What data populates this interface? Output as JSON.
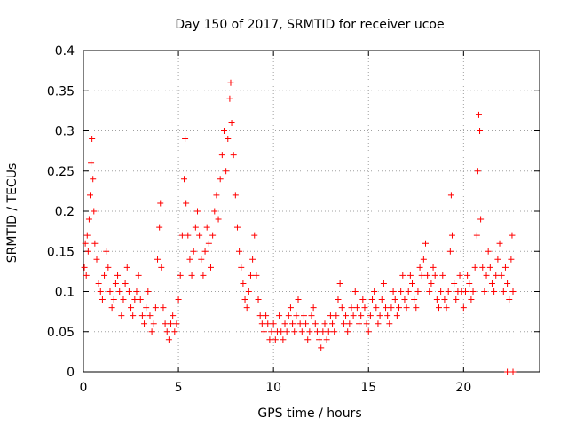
{
  "chart_data": {
    "type": "scatter",
    "title": "Day 150 of 2017, SRMTID for receiver ucoe",
    "xlabel": "GPS time / hours",
    "ylabel": "SRMTID / TECUs",
    "xlim": [
      0,
      24
    ],
    "ylim": [
      0,
      0.4
    ],
    "xticks": [
      0,
      5,
      10,
      15,
      20
    ],
    "xtick_labels": [
      "0",
      "5",
      "10",
      "15",
      "20"
    ],
    "yticks": [
      0,
      0.05,
      0.1,
      0.15,
      0.2,
      0.25,
      0.3,
      0.35,
      0.4
    ],
    "ytick_labels": [
      "0",
      "0.05",
      "0.1",
      "0.15",
      "0.2",
      "0.25",
      "0.3",
      "0.35",
      "0.4"
    ],
    "grid": true,
    "marker": "+",
    "color": "#ff0000",
    "series": [
      {
        "name": "SRMTID",
        "points": [
          [
            0.05,
            0.13
          ],
          [
            0.1,
            0.16
          ],
          [
            0.15,
            0.12
          ],
          [
            0.2,
            0.17
          ],
          [
            0.25,
            0.15
          ],
          [
            0.3,
            0.19
          ],
          [
            0.35,
            0.22
          ],
          [
            0.4,
            0.26
          ],
          [
            0.45,
            0.29
          ],
          [
            0.5,
            0.24
          ],
          [
            0.55,
            0.2
          ],
          [
            0.6,
            0.16
          ],
          [
            0.7,
            0.14
          ],
          [
            0.8,
            0.11
          ],
          [
            0.9,
            0.1
          ],
          [
            1.0,
            0.09
          ],
          [
            1.1,
            0.12
          ],
          [
            1.2,
            0.15
          ],
          [
            1.3,
            0.13
          ],
          [
            1.4,
            0.1
          ],
          [
            1.5,
            0.08
          ],
          [
            1.6,
            0.09
          ],
          [
            1.7,
            0.11
          ],
          [
            1.8,
            0.12
          ],
          [
            1.9,
            0.1
          ],
          [
            2.0,
            0.07
          ],
          [
            2.1,
            0.09
          ],
          [
            2.2,
            0.11
          ],
          [
            2.3,
            0.13
          ],
          [
            2.4,
            0.1
          ],
          [
            2.5,
            0.08
          ],
          [
            2.6,
            0.07
          ],
          [
            2.7,
            0.09
          ],
          [
            2.8,
            0.1
          ],
          [
            2.9,
            0.12
          ],
          [
            3.0,
            0.09
          ],
          [
            3.1,
            0.07
          ],
          [
            3.2,
            0.06
          ],
          [
            3.3,
            0.08
          ],
          [
            3.4,
            0.1
          ],
          [
            3.5,
            0.07
          ],
          [
            3.6,
            0.05
          ],
          [
            3.7,
            0.06
          ],
          [
            3.8,
            0.08
          ],
          [
            3.9,
            0.14
          ],
          [
            4.0,
            0.18
          ],
          [
            4.05,
            0.21
          ],
          [
            4.1,
            0.13
          ],
          [
            4.2,
            0.08
          ],
          [
            4.3,
            0.06
          ],
          [
            4.4,
            0.05
          ],
          [
            4.5,
            0.04
          ],
          [
            4.6,
            0.06
          ],
          [
            4.7,
            0.07
          ],
          [
            4.8,
            0.05
          ],
          [
            4.9,
            0.06
          ],
          [
            5.0,
            0.09
          ],
          [
            5.1,
            0.12
          ],
          [
            5.2,
            0.17
          ],
          [
            5.3,
            0.24
          ],
          [
            5.35,
            0.29
          ],
          [
            5.4,
            0.21
          ],
          [
            5.5,
            0.17
          ],
          [
            5.6,
            0.14
          ],
          [
            5.7,
            0.12
          ],
          [
            5.8,
            0.15
          ],
          [
            5.9,
            0.18
          ],
          [
            6.0,
            0.2
          ],
          [
            6.1,
            0.17
          ],
          [
            6.2,
            0.14
          ],
          [
            6.3,
            0.12
          ],
          [
            6.4,
            0.15
          ],
          [
            6.5,
            0.18
          ],
          [
            6.6,
            0.16
          ],
          [
            6.7,
            0.13
          ],
          [
            6.8,
            0.17
          ],
          [
            6.9,
            0.2
          ],
          [
            7.0,
            0.22
          ],
          [
            7.1,
            0.19
          ],
          [
            7.2,
            0.24
          ],
          [
            7.3,
            0.27
          ],
          [
            7.4,
            0.3
          ],
          [
            7.5,
            0.25
          ],
          [
            7.6,
            0.29
          ],
          [
            7.7,
            0.34
          ],
          [
            7.75,
            0.36
          ],
          [
            7.8,
            0.31
          ],
          [
            7.9,
            0.27
          ],
          [
            8.0,
            0.22
          ],
          [
            8.1,
            0.18
          ],
          [
            8.2,
            0.15
          ],
          [
            8.3,
            0.13
          ],
          [
            8.4,
            0.11
          ],
          [
            8.5,
            0.09
          ],
          [
            8.6,
            0.08
          ],
          [
            8.7,
            0.1
          ],
          [
            8.8,
            0.12
          ],
          [
            8.9,
            0.14
          ],
          [
            9.0,
            0.17
          ],
          [
            9.1,
            0.12
          ],
          [
            9.2,
            0.09
          ],
          [
            9.3,
            0.07
          ],
          [
            9.4,
            0.06
          ],
          [
            9.5,
            0.05
          ],
          [
            9.6,
            0.07
          ],
          [
            9.7,
            0.06
          ],
          [
            9.8,
            0.04
          ],
          [
            9.9,
            0.05
          ],
          [
            10.0,
            0.06
          ],
          [
            10.1,
            0.04
          ],
          [
            10.2,
            0.05
          ],
          [
            10.3,
            0.07
          ],
          [
            10.4,
            0.05
          ],
          [
            10.5,
            0.04
          ],
          [
            10.6,
            0.06
          ],
          [
            10.7,
            0.05
          ],
          [
            10.8,
            0.07
          ],
          [
            10.9,
            0.08
          ],
          [
            11.0,
            0.06
          ],
          [
            11.1,
            0.05
          ],
          [
            11.2,
            0.07
          ],
          [
            11.3,
            0.09
          ],
          [
            11.4,
            0.06
          ],
          [
            11.5,
            0.05
          ],
          [
            11.6,
            0.07
          ],
          [
            11.7,
            0.06
          ],
          [
            11.8,
            0.04
          ],
          [
            11.9,
            0.05
          ],
          [
            12.0,
            0.07
          ],
          [
            12.1,
            0.08
          ],
          [
            12.2,
            0.06
          ],
          [
            12.3,
            0.05
          ],
          [
            12.4,
            0.04
          ],
          [
            12.5,
            0.03
          ],
          [
            12.6,
            0.05
          ],
          [
            12.7,
            0.06
          ],
          [
            12.8,
            0.04
          ],
          [
            12.9,
            0.05
          ],
          [
            13.0,
            0.07
          ],
          [
            13.1,
            0.06
          ],
          [
            13.2,
            0.05
          ],
          [
            13.3,
            0.07
          ],
          [
            13.4,
            0.09
          ],
          [
            13.5,
            0.11
          ],
          [
            13.6,
            0.08
          ],
          [
            13.7,
            0.06
          ],
          [
            13.8,
            0.07
          ],
          [
            13.9,
            0.05
          ],
          [
            14.0,
            0.06
          ],
          [
            14.1,
            0.08
          ],
          [
            14.2,
            0.07
          ],
          [
            14.3,
            0.1
          ],
          [
            14.4,
            0.08
          ],
          [
            14.5,
            0.06
          ],
          [
            14.6,
            0.07
          ],
          [
            14.7,
            0.09
          ],
          [
            14.8,
            0.08
          ],
          [
            14.9,
            0.06
          ],
          [
            15.0,
            0.05
          ],
          [
            15.1,
            0.07
          ],
          [
            15.2,
            0.09
          ],
          [
            15.3,
            0.1
          ],
          [
            15.4,
            0.08
          ],
          [
            15.5,
            0.06
          ],
          [
            15.6,
            0.07
          ],
          [
            15.7,
            0.09
          ],
          [
            15.8,
            0.11
          ],
          [
            15.9,
            0.08
          ],
          [
            16.0,
            0.07
          ],
          [
            16.1,
            0.06
          ],
          [
            16.2,
            0.08
          ],
          [
            16.3,
            0.1
          ],
          [
            16.4,
            0.09
          ],
          [
            16.5,
            0.07
          ],
          [
            16.6,
            0.08
          ],
          [
            16.7,
            0.1
          ],
          [
            16.8,
            0.12
          ],
          [
            16.9,
            0.09
          ],
          [
            17.0,
            0.08
          ],
          [
            17.1,
            0.1
          ],
          [
            17.2,
            0.12
          ],
          [
            17.3,
            0.11
          ],
          [
            17.4,
            0.09
          ],
          [
            17.5,
            0.08
          ],
          [
            17.6,
            0.1
          ],
          [
            17.7,
            0.13
          ],
          [
            17.8,
            0.12
          ],
          [
            17.9,
            0.14
          ],
          [
            18.0,
            0.16
          ],
          [
            18.1,
            0.12
          ],
          [
            18.2,
            0.1
          ],
          [
            18.3,
            0.11
          ],
          [
            18.4,
            0.13
          ],
          [
            18.5,
            0.12
          ],
          [
            18.6,
            0.09
          ],
          [
            18.7,
            0.08
          ],
          [
            18.8,
            0.1
          ],
          [
            18.9,
            0.12
          ],
          [
            19.0,
            0.09
          ],
          [
            19.1,
            0.08
          ],
          [
            19.2,
            0.1
          ],
          [
            19.3,
            0.15
          ],
          [
            19.35,
            0.22
          ],
          [
            19.4,
            0.17
          ],
          [
            19.5,
            0.11
          ],
          [
            19.6,
            0.09
          ],
          [
            19.7,
            0.1
          ],
          [
            19.8,
            0.12
          ],
          [
            19.9,
            0.1
          ],
          [
            20.0,
            0.08
          ],
          [
            20.1,
            0.1
          ],
          [
            20.2,
            0.12
          ],
          [
            20.3,
            0.11
          ],
          [
            20.4,
            0.09
          ],
          [
            20.5,
            0.1
          ],
          [
            20.6,
            0.13
          ],
          [
            20.7,
            0.17
          ],
          [
            20.75,
            0.25
          ],
          [
            20.8,
            0.32
          ],
          [
            20.85,
            0.3
          ],
          [
            20.9,
            0.19
          ],
          [
            21.0,
            0.13
          ],
          [
            21.1,
            0.1
          ],
          [
            21.2,
            0.12
          ],
          [
            21.3,
            0.15
          ],
          [
            21.4,
            0.13
          ],
          [
            21.5,
            0.11
          ],
          [
            21.6,
            0.1
          ],
          [
            21.7,
            0.12
          ],
          [
            21.8,
            0.14
          ],
          [
            21.9,
            0.16
          ],
          [
            22.0,
            0.12
          ],
          [
            22.1,
            0.1
          ],
          [
            22.2,
            0.13
          ],
          [
            22.3,
            0.11
          ],
          [
            22.4,
            0.09
          ],
          [
            22.5,
            0.14
          ],
          [
            22.55,
            0.17
          ],
          [
            22.6,
            0.1
          ],
          [
            22.3,
            0.0
          ],
          [
            22.6,
            0.0
          ]
        ]
      }
    ]
  }
}
